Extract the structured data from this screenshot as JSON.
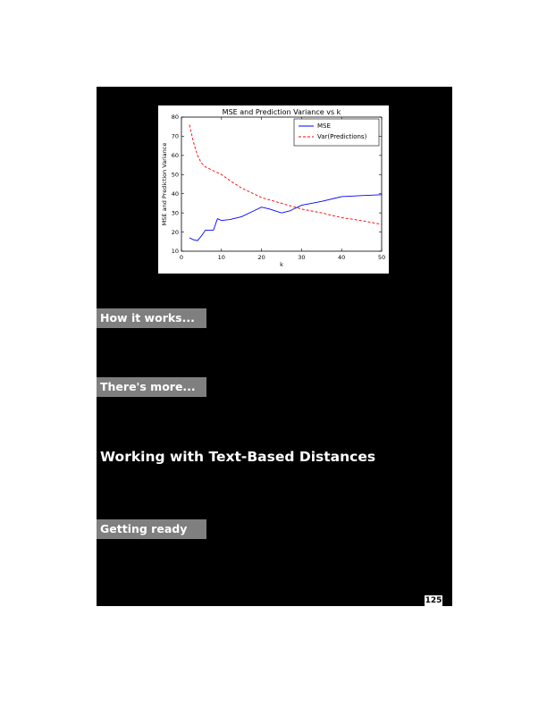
{
  "sections": {
    "how_it_works": "How it works...",
    "theres_more": "There's more...",
    "getting_ready": "Getting ready"
  },
  "heading": "Working with Text-Based Distances",
  "page_number": "125",
  "chart_data": {
    "type": "line",
    "title": "MSE and Prediction Variance vs k",
    "xlabel": "k",
    "ylabel": "MSE and Prediction Variance",
    "xlim": [
      0,
      50
    ],
    "ylim": [
      10,
      80
    ],
    "xticks": [
      "0",
      "10",
      "20",
      "30",
      "40",
      "50"
    ],
    "yticks": [
      "10",
      "20",
      "30",
      "40",
      "50",
      "60",
      "70",
      "80"
    ],
    "legend_placement": "top-right",
    "grid": false,
    "series": [
      {
        "name": "MSE",
        "color": "#0000ff",
        "style": "solid",
        "x": [
          2,
          3,
          4,
          5,
          6,
          7,
          8,
          9,
          10,
          12,
          15,
          18,
          20,
          22,
          25,
          27,
          30,
          35,
          40,
          45,
          50
        ],
        "y": [
          17,
          16,
          15.5,
          18,
          21,
          21,
          21,
          27,
          26,
          26.5,
          28,
          31,
          33,
          32,
          30,
          31,
          34,
          36,
          38.5,
          39,
          39.5
        ]
      },
      {
        "name": "Var(Predictions)",
        "color": "#ff0000",
        "style": "dashed",
        "x": [
          2,
          3,
          4,
          5,
          6,
          8,
          10,
          12,
          15,
          18,
          20,
          25,
          30,
          35,
          40,
          45,
          50
        ],
        "y": [
          76,
          67,
          60,
          56,
          54,
          52,
          50,
          47,
          43,
          40,
          38,
          35,
          32,
          30,
          27.5,
          26,
          24
        ]
      }
    ]
  }
}
